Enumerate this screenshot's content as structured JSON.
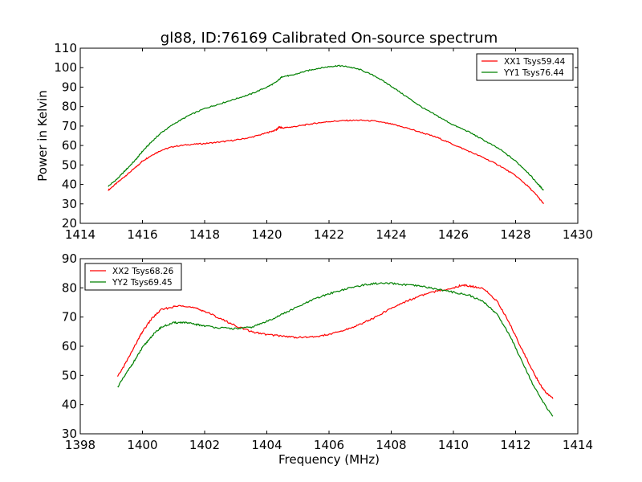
{
  "chart_data": [
    {
      "type": "line",
      "title": "gl88, ID:76169 Calibrated On-source spectrum",
      "xlabel": "",
      "ylabel": "Power in Kelvin",
      "xlim": [
        1414,
        1430
      ],
      "ylim": [
        20,
        110
      ],
      "xticks": [
        "1414",
        "1416",
        "1418",
        "1420",
        "1422",
        "1424",
        "1426",
        "1428",
        "1430"
      ],
      "yticks": [
        "20",
        "30",
        "40",
        "50",
        "60",
        "70",
        "80",
        "90",
        "100",
        "110"
      ],
      "legend_position": "top-right",
      "grid": false,
      "series": [
        {
          "name": "XX1 Tsys59.44",
          "color": "#ff0000",
          "x": [
            1414.9,
            1415.2,
            1415.5,
            1415.8,
            1416.0,
            1416.3,
            1416.6,
            1417.0,
            1417.5,
            1418.0,
            1418.5,
            1419.0,
            1419.5,
            1420.0,
            1420.3,
            1420.4,
            1420.5,
            1420.8,
            1421.2,
            1421.6,
            1422.0,
            1422.5,
            1423.0,
            1423.5,
            1424.0,
            1424.5,
            1425.0,
            1425.5,
            1426.0,
            1426.5,
            1427.0,
            1427.5,
            1428.0,
            1428.4,
            1428.7,
            1428.9
          ],
          "y": [
            37,
            41,
            45,
            49,
            52,
            55,
            57.5,
            59.5,
            60.5,
            61,
            61.8,
            62.8,
            64.2,
            66.5,
            68,
            69.5,
            69,
            69.5,
            70.5,
            71.5,
            72.3,
            72.8,
            73,
            72.5,
            71,
            69,
            66.5,
            64,
            60.5,
            57,
            53.5,
            49.5,
            44.5,
            39,
            34,
            30
          ]
        },
        {
          "name": "YY1 Tsys76.44",
          "color": "#008000",
          "x": [
            1414.9,
            1415.2,
            1415.5,
            1415.8,
            1416.0,
            1416.3,
            1416.6,
            1417.0,
            1417.5,
            1418.0,
            1418.5,
            1419.0,
            1419.5,
            1420.0,
            1420.3,
            1420.5,
            1420.8,
            1421.2,
            1421.6,
            1422.0,
            1422.3,
            1422.6,
            1423.0,
            1423.5,
            1424.0,
            1424.5,
            1425.0,
            1425.5,
            1426.0,
            1426.5,
            1427.0,
            1427.5,
            1428.0,
            1428.4,
            1428.7,
            1428.9
          ],
          "y": [
            39,
            43,
            48,
            53,
            57,
            62,
            66.5,
            71,
            75.5,
            79,
            81.5,
            84,
            86.5,
            90,
            92.5,
            95.5,
            96,
            98,
            99.5,
            100.5,
            101,
            100.5,
            99,
            95.5,
            90.5,
            85,
            79.5,
            75,
            70.5,
            67,
            62.5,
            58,
            52,
            46,
            40.5,
            37
          ]
        }
      ]
    },
    {
      "type": "line",
      "title": "",
      "xlabel": "Frequency (MHz)",
      "ylabel": "",
      "xlim": [
        1398,
        1414
      ],
      "ylim": [
        30,
        90
      ],
      "xticks": [
        "1398",
        "1400",
        "1402",
        "1404",
        "1406",
        "1408",
        "1410",
        "1412",
        "1414"
      ],
      "yticks": [
        "30",
        "40",
        "50",
        "60",
        "70",
        "80",
        "90"
      ],
      "legend_position": "top-left",
      "grid": false,
      "series": [
        {
          "name": "XX2 Tsys68.26",
          "color": "#ff0000",
          "x": [
            1399.2,
            1399.5,
            1399.8,
            1400.0,
            1400.3,
            1400.6,
            1401.0,
            1401.3,
            1401.7,
            1402.0,
            1402.5,
            1403.0,
            1403.5,
            1404.0,
            1404.5,
            1405.0,
            1405.5,
            1406.0,
            1406.5,
            1407.0,
            1407.5,
            1408.0,
            1408.5,
            1409.0,
            1409.5,
            1410.0,
            1410.3,
            1410.6,
            1411.0,
            1411.4,
            1411.8,
            1412.2,
            1412.6,
            1412.9,
            1413.2
          ],
          "y": [
            49.5,
            55,
            61,
            65,
            69.5,
            72.5,
            73.5,
            74,
            73,
            72,
            69.5,
            67,
            65,
            64,
            63.5,
            63,
            63.2,
            64,
            65.5,
            67.5,
            70,
            73,
            75.5,
            77.5,
            79,
            80,
            81,
            80.5,
            79.5,
            75.5,
            68,
            59,
            50.5,
            45,
            42
          ]
        },
        {
          "name": "YY2 Tsys69.45",
          "color": "#008000",
          "x": [
            1399.2,
            1399.5,
            1399.8,
            1400.0,
            1400.3,
            1400.6,
            1401.0,
            1401.3,
            1401.7,
            1402.0,
            1402.5,
            1403.0,
            1403.5,
            1404.0,
            1404.5,
            1405.0,
            1405.5,
            1406.0,
            1406.5,
            1407.0,
            1407.5,
            1408.0,
            1408.5,
            1409.0,
            1409.5,
            1410.0,
            1410.5,
            1411.0,
            1411.4,
            1411.8,
            1412.2,
            1412.6,
            1412.9,
            1413.2
          ],
          "y": [
            46,
            51,
            56,
            59.5,
            63.5,
            66.5,
            68,
            68.2,
            67.5,
            67,
            66.3,
            66,
            66.5,
            68.5,
            71,
            73.5,
            76,
            78,
            79.5,
            80.8,
            81.5,
            81.5,
            81,
            80.5,
            79.5,
            78.5,
            77.5,
            75,
            71,
            64,
            55,
            46,
            40.5,
            36
          ]
        }
      ]
    }
  ]
}
